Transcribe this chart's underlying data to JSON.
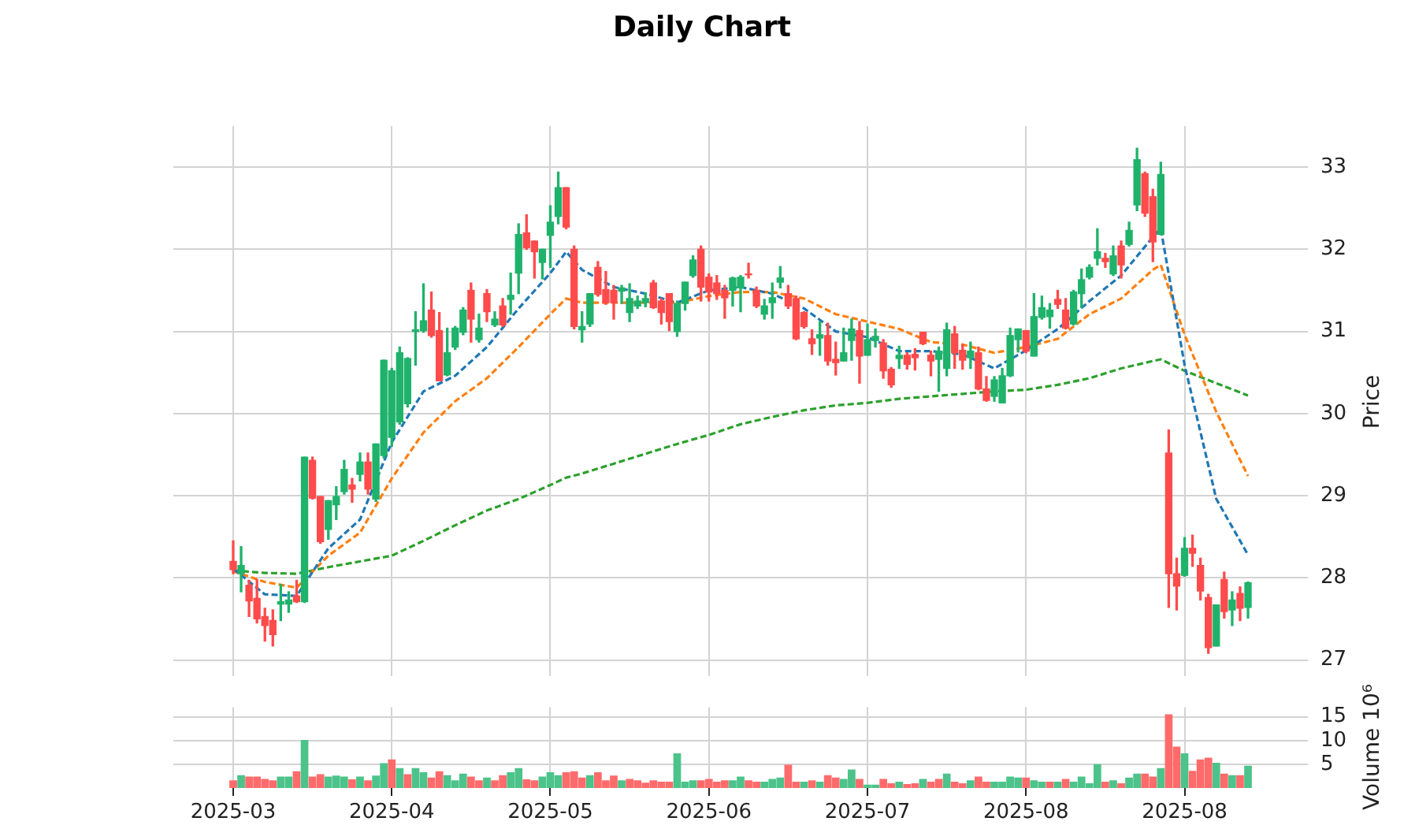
{
  "chart_data": [
    {
      "type": "candlestick",
      "title": "Daily Chart",
      "ylabel": "Price",
      "categories": [
        "2025-03",
        null,
        null,
        null,
        null,
        null,
        null,
        null,
        null,
        null,
        null,
        null,
        null,
        null,
        null,
        null,
        null,
        null,
        null,
        null,
        "2025-04",
        null,
        null,
        null,
        null,
        null,
        null,
        null,
        null,
        null,
        null,
        null,
        null,
        null,
        null,
        null,
        null,
        null,
        null,
        null,
        "2025-05",
        null,
        null,
        null,
        null,
        null,
        null,
        null,
        null,
        null,
        null,
        null,
        null,
        null,
        null,
        null,
        null,
        null,
        null,
        null,
        "2025-06",
        null,
        null,
        null,
        null,
        null,
        null,
        null,
        null,
        null,
        null,
        null,
        null,
        null,
        null,
        null,
        null,
        null,
        null,
        null,
        "2025-07",
        null,
        null,
        null,
        null,
        null,
        null,
        null,
        null,
        null,
        null,
        null,
        null,
        null,
        null,
        null,
        null,
        null,
        null,
        null,
        "2025-08",
        null,
        null,
        null,
        null,
        null,
        null,
        null,
        null,
        null,
        null,
        null,
        null,
        null,
        null,
        null,
        null,
        null,
        null,
        null,
        "2025-08",
        null,
        null,
        null,
        null,
        null,
        null,
        null,
        null
      ],
      "ohlc": [
        [
          28.2,
          28.45,
          28.05,
          28.1
        ],
        [
          28.05,
          28.38,
          27.83,
          28.15
        ],
        [
          27.91,
          27.97,
          27.53,
          27.72
        ],
        [
          27.75,
          27.98,
          27.45,
          27.5
        ],
        [
          27.53,
          27.63,
          27.23,
          27.42
        ],
        [
          27.48,
          27.61,
          27.17,
          27.31
        ],
        [
          27.68,
          27.92,
          27.48,
          27.71
        ],
        [
          27.68,
          27.83,
          27.58,
          27.73
        ],
        [
          27.78,
          27.97,
          27.7,
          27.71
        ],
        [
          27.71,
          29.47,
          27.7,
          29.47
        ],
        [
          29.43,
          29.47,
          28.96,
          28.97
        ],
        [
          28.99,
          28.99,
          28.42,
          28.44
        ],
        [
          28.59,
          28.94,
          28.47,
          28.94
        ],
        [
          28.89,
          29.11,
          28.71,
          28.99
        ],
        [
          29.05,
          29.43,
          29.02,
          29.32
        ],
        [
          29.13,
          29.21,
          28.92,
          29.08
        ],
        [
          29.26,
          29.52,
          29.18,
          29.41
        ],
        [
          29.41,
          29.52,
          29.02,
          29.08
        ],
        [
          28.96,
          29.63,
          28.93,
          29.63
        ],
        [
          29.49,
          30.65,
          29.46,
          30.65
        ],
        [
          29.71,
          30.55,
          29.6,
          30.52
        ],
        [
          29.9,
          30.81,
          29.87,
          30.74
        ],
        [
          30.12,
          30.68,
          30.08,
          30.67
        ],
        [
          31.0,
          31.24,
          30.59,
          31.02
        ],
        [
          31.01,
          31.58,
          30.99,
          31.13
        ],
        [
          31.26,
          31.48,
          30.93,
          30.95
        ],
        [
          31.01,
          31.23,
          30.4,
          30.4
        ],
        [
          30.47,
          31.04,
          30.46,
          30.74
        ],
        [
          30.81,
          31.06,
          30.78,
          31.04
        ],
        [
          30.99,
          31.29,
          30.96,
          31.26
        ],
        [
          31.5,
          31.59,
          30.87,
          31.15
        ],
        [
          30.9,
          31.21,
          30.87,
          31.04
        ],
        [
          31.46,
          31.51,
          31.12,
          31.24
        ],
        [
          31.08,
          31.24,
          31.06,
          31.15
        ],
        [
          31.31,
          31.4,
          31.06,
          31.08
        ],
        [
          31.39,
          31.71,
          31.21,
          31.44
        ],
        [
          31.71,
          32.31,
          31.46,
          32.18
        ],
        [
          32.2,
          32.42,
          32.0,
          32.02
        ],
        [
          32.1,
          32.1,
          31.65,
          31.97
        ],
        [
          31.84,
          32.0,
          31.64,
          32.0
        ],
        [
          32.17,
          32.53,
          31.78,
          32.33
        ],
        [
          32.4,
          32.94,
          32.31,
          32.75
        ],
        [
          32.75,
          32.75,
          32.25,
          32.27
        ],
        [
          32.0,
          32.04,
          31.03,
          31.06
        ],
        [
          31.02,
          31.24,
          30.87,
          31.06
        ],
        [
          31.09,
          31.46,
          31.06,
          31.46
        ],
        [
          31.78,
          31.85,
          31.43,
          31.45
        ],
        [
          31.51,
          31.73,
          31.33,
          31.35
        ],
        [
          31.5,
          31.56,
          31.15,
          31.35
        ],
        [
          31.49,
          31.56,
          31.34,
          31.53
        ],
        [
          31.23,
          31.58,
          31.12,
          31.4
        ],
        [
          31.31,
          31.43,
          31.28,
          31.37
        ],
        [
          31.35,
          31.47,
          31.3,
          31.4
        ],
        [
          31.59,
          31.62,
          31.28,
          31.29
        ],
        [
          31.37,
          31.4,
          31.09,
          31.23
        ],
        [
          31.46,
          31.46,
          31.01,
          31.12
        ],
        [
          31.0,
          31.37,
          30.94,
          31.34
        ],
        [
          31.34,
          31.6,
          31.26,
          31.6
        ],
        [
          31.68,
          31.92,
          31.66,
          31.87
        ],
        [
          32.0,
          32.04,
          31.37,
          31.54
        ],
        [
          31.66,
          31.7,
          31.37,
          31.48
        ],
        [
          31.59,
          31.68,
          31.39,
          31.46
        ],
        [
          31.5,
          31.56,
          31.16,
          31.41
        ],
        [
          31.5,
          31.66,
          31.31,
          31.65
        ],
        [
          31.53,
          31.68,
          31.24,
          31.66
        ],
        [
          31.7,
          31.83,
          31.65,
          31.69
        ],
        [
          31.5,
          31.54,
          31.29,
          31.31
        ],
        [
          31.21,
          31.39,
          31.15,
          31.31
        ],
        [
          31.35,
          31.59,
          31.16,
          31.41
        ],
        [
          31.6,
          31.79,
          31.53,
          31.65
        ],
        [
          31.46,
          31.56,
          31.28,
          31.31
        ],
        [
          31.4,
          31.43,
          30.9,
          30.91
        ],
        [
          31.23,
          31.24,
          31.04,
          31.06
        ],
        [
          30.91,
          31.02,
          30.72,
          30.85
        ],
        [
          30.92,
          31.12,
          30.71,
          30.96
        ],
        [
          30.95,
          31.1,
          30.59,
          30.64
        ],
        [
          30.66,
          30.87,
          30.47,
          30.62
        ],
        [
          30.64,
          31.04,
          30.64,
          30.74
        ],
        [
          30.89,
          31.15,
          30.65,
          31.03
        ],
        [
          31.01,
          31.12,
          30.37,
          30.7
        ],
        [
          30.71,
          31.09,
          30.71,
          30.9
        ],
        [
          30.89,
          31.03,
          30.81,
          30.94
        ],
        [
          30.86,
          30.9,
          30.43,
          30.52
        ],
        [
          30.54,
          30.56,
          30.32,
          30.35
        ],
        [
          30.67,
          30.82,
          30.55,
          30.71
        ],
        [
          30.71,
          30.74,
          30.54,
          30.6
        ],
        [
          30.72,
          30.79,
          30.53,
          30.68
        ],
        [
          30.99,
          30.99,
          30.84,
          30.85
        ],
        [
          30.71,
          30.76,
          30.46,
          30.64
        ],
        [
          30.66,
          30.81,
          30.27,
          30.76
        ],
        [
          30.55,
          31.1,
          30.46,
          31.02
        ],
        [
          30.97,
          31.06,
          30.55,
          30.74
        ],
        [
          30.77,
          30.84,
          30.54,
          30.65
        ],
        [
          30.68,
          30.87,
          30.55,
          30.76
        ],
        [
          30.74,
          30.81,
          30.29,
          30.3
        ],
        [
          30.3,
          30.45,
          30.15,
          30.16
        ],
        [
          30.21,
          30.45,
          30.15,
          30.41
        ],
        [
          30.13,
          30.55,
          30.13,
          30.46
        ],
        [
          30.46,
          31.04,
          30.45,
          30.95
        ],
        [
          30.9,
          31.03,
          30.75,
          31.03
        ],
        [
          31.01,
          31.01,
          30.74,
          30.76
        ],
        [
          30.7,
          31.46,
          30.7,
          31.18
        ],
        [
          31.17,
          31.43,
          31.15,
          31.29
        ],
        [
          31.18,
          31.34,
          31.04,
          31.26
        ],
        [
          31.39,
          31.5,
          31.28,
          31.33
        ],
        [
          31.26,
          31.4,
          31.03,
          31.04
        ],
        [
          31.09,
          31.5,
          31.08,
          31.48
        ],
        [
          31.46,
          31.76,
          31.29,
          31.63
        ],
        [
          31.66,
          31.81,
          31.64,
          31.78
        ],
        [
          31.89,
          32.25,
          31.81,
          31.97
        ],
        [
          31.89,
          31.95,
          31.78,
          31.85
        ],
        [
          31.7,
          32.04,
          31.68,
          31.92
        ],
        [
          32.04,
          32.1,
          31.65,
          31.81
        ],
        [
          32.06,
          32.33,
          32.04,
          32.23
        ],
        [
          32.54,
          33.23,
          32.47,
          33.09
        ],
        [
          32.92,
          32.94,
          32.4,
          32.44
        ],
        [
          32.64,
          32.73,
          31.85,
          32.09
        ],
        [
          32.18,
          33.06,
          32.18,
          32.91
        ],
        [
          29.52,
          29.8,
          27.64,
          28.05
        ],
        [
          28.05,
          28.24,
          27.61,
          27.9
        ],
        [
          28.03,
          28.49,
          28.02,
          28.36
        ],
        [
          28.36,
          28.52,
          28.14,
          28.3
        ],
        [
          28.15,
          28.24,
          27.73,
          27.84
        ],
        [
          27.76,
          27.8,
          27.08,
          27.15
        ],
        [
          27.17,
          27.67,
          27.17,
          27.67
        ],
        [
          27.98,
          28.07,
          27.51,
          27.59
        ],
        [
          27.61,
          27.83,
          27.42,
          27.73
        ],
        [
          27.81,
          27.89,
          27.48,
          27.63
        ],
        [
          27.64,
          27.95,
          27.51,
          27.94
        ]
      ],
      "colors": [
        "#ff4b4b",
        "#1fb26b",
        "#ff4b4b",
        "#ff4b4b",
        "#ff4b4b",
        "#ff4b4b",
        "#1fb26b",
        "#1fb26b",
        "#ff4b4b",
        "#1fb26b",
        "#ff4b4b",
        "#ff4b4b",
        "#1fb26b",
        "#1fb26b",
        "#1fb26b",
        "#ff4b4b",
        "#1fb26b",
        "#ff4b4b",
        "#1fb26b",
        "#1fb26b",
        "#1fb26b",
        "#1fb26b",
        "#1fb26b",
        "#1fb26b",
        "#1fb26b",
        "#ff4b4b",
        "#ff4b4b",
        "#1fb26b",
        "#1fb26b",
        "#1fb26b",
        "#ff4b4b",
        "#1fb26b",
        "#ff4b4b",
        "#1fb26b",
        "#ff4b4b",
        "#1fb26b",
        "#1fb26b",
        "#ff4b4b",
        "#ff4b4b",
        "#1fb26b",
        "#1fb26b",
        "#1fb26b",
        "#ff4b4b",
        "#ff4b4b",
        "#1fb26b",
        "#1fb26b",
        "#ff4b4b",
        "#ff4b4b",
        "#ff4b4b",
        "#1fb26b",
        "#1fb26b",
        "#1fb26b",
        "#1fb26b",
        "#ff4b4b",
        "#ff4b4b",
        "#ff4b4b",
        "#1fb26b",
        "#1fb26b",
        "#1fb26b",
        "#ff4b4b",
        "#ff4b4b",
        "#ff4b4b",
        "#ff4b4b",
        "#1fb26b",
        "#1fb26b",
        "#ff4b4b",
        "#ff4b4b",
        "#1fb26b",
        "#1fb26b",
        "#1fb26b",
        "#ff4b4b",
        "#ff4b4b",
        "#ff4b4b",
        "#ff4b4b",
        "#1fb26b",
        "#ff4b4b",
        "#ff4b4b",
        "#1fb26b",
        "#1fb26b",
        "#ff4b4b",
        "#1fb26b",
        "#1fb26b",
        "#ff4b4b",
        "#ff4b4b",
        "#1fb26b",
        "#ff4b4b",
        "#ff4b4b",
        "#ff4b4b",
        "#ff4b4b",
        "#1fb26b",
        "#1fb26b",
        "#ff4b4b",
        "#ff4b4b",
        "#1fb26b",
        "#ff4b4b",
        "#ff4b4b",
        "#1fb26b",
        "#1fb26b",
        "#1fb26b",
        "#1fb26b",
        "#ff4b4b",
        "#1fb26b",
        "#1fb26b",
        "#1fb26b",
        "#ff4b4b",
        "#ff4b4b",
        "#1fb26b",
        "#1fb26b",
        "#1fb26b",
        "#1fb26b",
        "#ff4b4b",
        "#1fb26b",
        "#ff4b4b",
        "#1fb26b",
        "#1fb26b",
        "#ff4b4b",
        "#ff4b4b",
        "#1fb26b",
        "#ff4b4b",
        "#ff4b4b",
        "#1fb26b",
        "#ff4b4b",
        "#ff4b4b",
        "#ff4b4b",
        "#1fb26b",
        "#ff4b4b",
        "#1fb26b",
        "#ff4b4b",
        "#1fb26b"
      ],
      "series": [
        {
          "type": "line",
          "color": "#1f77b4",
          "line_style": "dashed",
          "values": [
            28.11,
            null,
            null,
            null,
            27.8,
            null,
            null,
            null,
            27.78,
            null,
            null,
            null,
            28.36,
            null,
            null,
            null,
            28.71,
            null,
            null,
            null,
            29.65,
            null,
            null,
            null,
            30.27,
            null,
            null,
            null,
            30.46,
            null,
            null,
            null,
            30.81,
            null,
            null,
            null,
            31.28,
            null,
            null,
            null,
            31.71,
            null,
            31.97,
            null,
            31.75,
            null,
            null,
            null,
            31.54,
            null,
            null,
            null,
            31.46,
            null,
            null,
            null,
            31.35,
            null,
            null,
            null,
            31.5,
            null,
            null,
            null,
            31.54,
            null,
            null,
            null,
            31.46,
            null,
            null,
            null,
            31.28,
            null,
            null,
            null,
            31.0,
            null,
            null,
            null,
            30.93,
            null,
            null,
            null,
            30.76,
            null,
            null,
            null,
            30.76,
            null,
            null,
            null,
            30.72,
            null,
            null,
            null,
            30.55,
            null,
            null,
            null,
            30.77,
            null,
            null,
            null,
            31.03,
            null,
            null,
            null,
            31.37,
            null,
            null,
            null,
            31.68,
            null,
            null,
            null,
            32.15,
            32.25,
            null,
            null,
            30.59,
            null,
            null,
            null,
            28.96,
            null,
            null,
            null,
            28.28
          ]
        },
        {
          "type": "line",
          "color": "#ff7f0e",
          "line_style": "dashed",
          "values": [
            28.08,
            null,
            null,
            null,
            27.95,
            null,
            null,
            null,
            27.88,
            null,
            null,
            null,
            28.27,
            null,
            null,
            null,
            28.55,
            null,
            null,
            null,
            29.21,
            null,
            null,
            null,
            29.77,
            null,
            null,
            null,
            30.15,
            null,
            null,
            null,
            30.43,
            null,
            null,
            null,
            30.81,
            null,
            null,
            null,
            31.21,
            null,
            31.4,
            null,
            31.35,
            null,
            null,
            null,
            31.35,
            null,
            null,
            null,
            31.35,
            null,
            null,
            null,
            31.35,
            null,
            null,
            null,
            31.43,
            null,
            null,
            null,
            31.48,
            null,
            null,
            null,
            31.48,
            null,
            null,
            null,
            31.4,
            null,
            null,
            null,
            31.21,
            null,
            null,
            null,
            31.12,
            null,
            null,
            null,
            31.03,
            null,
            null,
            null,
            30.87,
            null,
            null,
            null,
            30.84,
            null,
            null,
            null,
            30.74,
            null,
            null,
            null,
            30.81,
            null,
            null,
            null,
            30.91,
            null,
            null,
            null,
            31.21,
            null,
            null,
            null,
            31.4,
            null,
            null,
            null,
            31.75,
            31.81,
            null,
            null,
            30.96,
            null,
            null,
            null,
            30.02,
            null,
            null,
            null,
            29.24
          ]
        },
        {
          "type": "line",
          "color": "#2ca02c",
          "line_style": "dashed",
          "values": [
            28.09,
            null,
            null,
            null,
            28.06,
            null,
            null,
            null,
            28.05,
            null,
            null,
            null,
            28.13,
            null,
            null,
            null,
            28.2,
            null,
            null,
            null,
            28.27,
            null,
            null,
            null,
            28.45,
            null,
            null,
            null,
            28.64,
            null,
            null,
            null,
            28.82,
            null,
            null,
            null,
            28.96,
            null,
            null,
            null,
            29.13,
            null,
            29.22,
            null,
            29.27,
            null,
            null,
            null,
            29.39,
            null,
            null,
            null,
            29.51,
            null,
            null,
            null,
            29.63,
            null,
            null,
            null,
            29.74,
            null,
            null,
            null,
            29.87,
            null,
            null,
            null,
            29.96,
            null,
            null,
            null,
            30.04,
            null,
            null,
            null,
            30.1,
            null,
            null,
            null,
            30.13,
            null,
            null,
            null,
            30.18,
            null,
            null,
            null,
            30.21,
            null,
            null,
            null,
            30.24,
            null,
            null,
            null,
            30.27,
            null,
            null,
            null,
            30.29,
            null,
            null,
            null,
            30.35,
            null,
            null,
            null,
            30.43,
            null,
            null,
            null,
            30.55,
            null,
            null,
            null,
            30.64,
            30.66,
            null,
            null,
            30.52,
            null,
            null,
            null,
            30.37,
            null,
            null,
            null,
            30.22
          ]
        }
      ],
      "ylim": [
        26.8,
        33.5
      ],
      "yticks": [
        27,
        28,
        29,
        30,
        31,
        32,
        33
      ],
      "grid": true,
      "tick_labels": "y"
    },
    {
      "type": "bar",
      "ylabel": "Volume  10⁶",
      "categories": [
        "2025-03",
        null,
        null,
        null,
        null,
        null,
        null,
        null,
        null,
        null,
        null,
        null,
        null,
        null,
        null,
        null,
        null,
        null,
        null,
        null,
        "2025-04",
        null,
        null,
        null,
        null,
        null,
        null,
        null,
        null,
        null,
        null,
        null,
        null,
        null,
        null,
        null,
        null,
        null,
        null,
        null,
        "2025-05",
        null,
        null,
        null,
        null,
        null,
        null,
        null,
        null,
        null,
        null,
        null,
        null,
        null,
        null,
        null,
        null,
        null,
        null,
        null,
        "2025-06",
        null,
        null,
        null,
        null,
        null,
        null,
        null,
        null,
        null,
        null,
        null,
        null,
        null,
        null,
        null,
        null,
        null,
        null,
        null,
        "2025-07",
        null,
        null,
        null,
        null,
        null,
        null,
        null,
        null,
        null,
        null,
        null,
        null,
        null,
        null,
        null,
        null,
        null,
        null,
        null,
        "2025-08",
        null,
        null,
        null,
        null,
        null,
        null,
        null,
        null,
        null,
        null,
        null,
        null,
        null,
        null,
        null,
        null,
        null,
        null,
        null,
        "2025-08",
        null,
        null,
        null,
        null,
        null,
        null,
        null,
        null
      ],
      "values": [
        1.5,
        2.6,
        2.3,
        2.3,
        1.8,
        1.5,
        2.3,
        2.3,
        3.4,
        10.0,
        2.3,
        2.8,
        2.3,
        2.5,
        2.3,
        1.7,
        2.3,
        1.5,
        2.5,
        5.1,
        5.9,
        4.1,
        2.8,
        4.1,
        3.2,
        2.1,
        3.4,
        2.6,
        1.5,
        2.9,
        2.3,
        1.5,
        2.1,
        1.5,
        2.6,
        3.2,
        4.1,
        1.7,
        1.5,
        2.3,
        3.2,
        2.6,
        3.2,
        3.4,
        2.1,
        2.6,
        3.2,
        1.5,
        2.5,
        1.5,
        1.8,
        1.5,
        1.0,
        1.5,
        1.2,
        1.2,
        7.2,
        1.2,
        1.5,
        1.5,
        1.8,
        1.2,
        1.5,
        1.5,
        2.3,
        1.5,
        1.2,
        1.2,
        1.8,
        2.1,
        4.8,
        1.2,
        1.2,
        1.5,
        1.2,
        2.6,
        2.1,
        1.8,
        3.8,
        1.8,
        0.6,
        0.6,
        1.8,
        0.9,
        1.2,
        0.7,
        0.9,
        1.8,
        1.2,
        1.8,
        2.9,
        1.2,
        0.9,
        1.5,
        2.3,
        1.2,
        1.2,
        1.2,
        2.3,
        2.1,
        2.1,
        1.5,
        1.2,
        1.2,
        1.2,
        1.8,
        1.2,
        2.3,
        0.9,
        4.9,
        1.2,
        1.5,
        0.9,
        2.1,
        2.9,
        2.9,
        2.3,
        4.1,
        15.4,
        8.6,
        7.2,
        3.5,
        5.9,
        6.3,
        5.2,
        2.9,
        2.6,
        2.6,
        4.6
      ],
      "colors": [
        "#ff6b6b",
        "#4cc38a",
        "#ff6b6b",
        "#ff6b6b",
        "#ff6b6b",
        "#ff6b6b",
        "#4cc38a",
        "#4cc38a",
        "#ff6b6b",
        "#4cc38a",
        "#ff6b6b",
        "#ff6b6b",
        "#4cc38a",
        "#4cc38a",
        "#4cc38a",
        "#ff6b6b",
        "#4cc38a",
        "#ff6b6b",
        "#4cc38a",
        "#4cc38a",
        "#ff6b6b",
        "#4cc38a",
        "#ff6b6b",
        "#4cc38a",
        "#4cc38a",
        "#ff6b6b",
        "#ff6b6b",
        "#4cc38a",
        "#4cc38a",
        "#4cc38a",
        "#ff6b6b",
        "#ff6b6b",
        "#4cc38a",
        "#ff6b6b",
        "#ff6b6b",
        "#4cc38a",
        "#4cc38a",
        "#ff6b6b",
        "#ff6b6b",
        "#4cc38a",
        "#4cc38a",
        "#4cc38a",
        "#ff6b6b",
        "#ff6b6b",
        "#ff6b6b",
        "#4cc38a",
        "#ff6b6b",
        "#ff6b6b",
        "#ff6b6b",
        "#4cc38a",
        "#ff6b6b",
        "#ff6b6b",
        "#ff6b6b",
        "#ff6b6b",
        "#ff6b6b",
        "#ff6b6b",
        "#4cc38a",
        "#4cc38a",
        "#4cc38a",
        "#ff6b6b",
        "#ff6b6b",
        "#ff6b6b",
        "#ff6b6b",
        "#4cc38a",
        "#4cc38a",
        "#ff6b6b",
        "#ff6b6b",
        "#4cc38a",
        "#4cc38a",
        "#4cc38a",
        "#ff6b6b",
        "#ff6b6b",
        "#4cc38a",
        "#ff6b6b",
        "#4cc38a",
        "#ff6b6b",
        "#ff6b6b",
        "#4cc38a",
        "#4cc38a",
        "#ff6b6b",
        "#4cc38a",
        "#4cc38a",
        "#ff6b6b",
        "#ff6b6b",
        "#4cc38a",
        "#ff6b6b",
        "#ff6b6b",
        "#4cc38a",
        "#ff6b6b",
        "#ff6b6b",
        "#4cc38a",
        "#ff6b6b",
        "#ff6b6b",
        "#4cc38a",
        "#ff6b6b",
        "#ff6b6b",
        "#4cc38a",
        "#4cc38a",
        "#4cc38a",
        "#4cc38a",
        "#ff6b6b",
        "#4cc38a",
        "#4cc38a",
        "#ff6b6b",
        "#4cc38a",
        "#ff6b6b",
        "#4cc38a",
        "#4cc38a",
        "#4cc38a",
        "#4cc38a",
        "#ff6b6b",
        "#4cc38a",
        "#ff6b6b",
        "#4cc38a",
        "#4cc38a",
        "#ff6b6b",
        "#ff6b6b",
        "#4cc38a",
        "#ff6b6b",
        "#ff6b6b",
        "#4cc38a",
        "#ff6b6b",
        "#ff6b6b",
        "#ff6b6b",
        "#4cc38a",
        "#ff6b6b",
        "#4cc38a",
        "#ff6b6b",
        "#4cc38a"
      ],
      "ylim": [
        0,
        17
      ],
      "yticks": [
        5,
        10,
        15
      ],
      "grid": true
    }
  ]
}
